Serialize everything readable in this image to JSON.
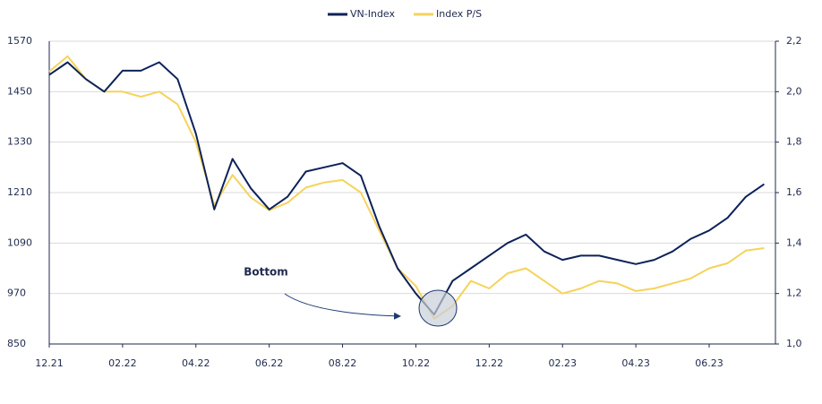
{
  "chart_data": {
    "type": "line",
    "categories": [
      "12.21",
      null,
      null,
      null,
      "02.22",
      null,
      null,
      null,
      "04.22",
      null,
      null,
      null,
      "06.22",
      null,
      null,
      null,
      "08.22",
      null,
      null,
      null,
      "10.22",
      null,
      null,
      null,
      "12.22",
      null,
      null,
      null,
      "02.23",
      null,
      null,
      null,
      "04.23",
      null,
      null,
      null,
      "06.23",
      null,
      null,
      null
    ],
    "series": [
      {
        "name": "VN-Index",
        "color": "#0d2259",
        "values": [
          1490,
          1520,
          1480,
          1450,
          1500,
          1500,
          1520,
          1480,
          1350,
          1170,
          1290,
          1220,
          1170,
          1200,
          1260,
          1270,
          1280,
          1250,
          1130,
          1030,
          970,
          920,
          1000,
          1030,
          1060,
          1090,
          1110,
          1070,
          1050,
          1060,
          1060,
          1050,
          1040,
          1050,
          1070,
          1100,
          1120,
          1150,
          1200,
          1230
        ]
      },
      {
        "name": "Index P/S",
        "color": "#f5d35b",
        "axis": "y2",
        "values": [
          2.08,
          2.14,
          2.05,
          2.0,
          2.0,
          1.98,
          2.0,
          1.95,
          1.8,
          1.55,
          1.67,
          1.58,
          1.53,
          1.56,
          1.62,
          1.64,
          1.65,
          1.6,
          1.45,
          1.3,
          1.23,
          1.1,
          1.15,
          1.25,
          1.22,
          1.28,
          1.3,
          1.25,
          1.2,
          1.22,
          1.25,
          1.24,
          1.21,
          1.22,
          1.24,
          1.26,
          1.3,
          1.32,
          1.37,
          1.38
        ]
      }
    ],
    "ylim": [
      850,
      1570
    ],
    "yticks": [
      850,
      970,
      1090,
      1210,
      1330,
      1450,
      1570
    ],
    "y2lim": [
      1.0,
      2.2
    ],
    "y2ticks": [
      {
        "value": 1.0,
        "label": "1,0"
      },
      {
        "value": 1.2,
        "label": "1,2"
      },
      {
        "value": 1.4,
        "label": "1,4"
      },
      {
        "value": 1.6,
        "label": "1,6"
      },
      {
        "value": 1.8,
        "label": "1,8"
      },
      {
        "value": 2.0,
        "label": "2,0"
      },
      {
        "value": 2.2,
        "label": "2,2"
      }
    ],
    "grid": true,
    "legend": "top",
    "annotations": [
      {
        "text": "Bottom"
      }
    ]
  }
}
